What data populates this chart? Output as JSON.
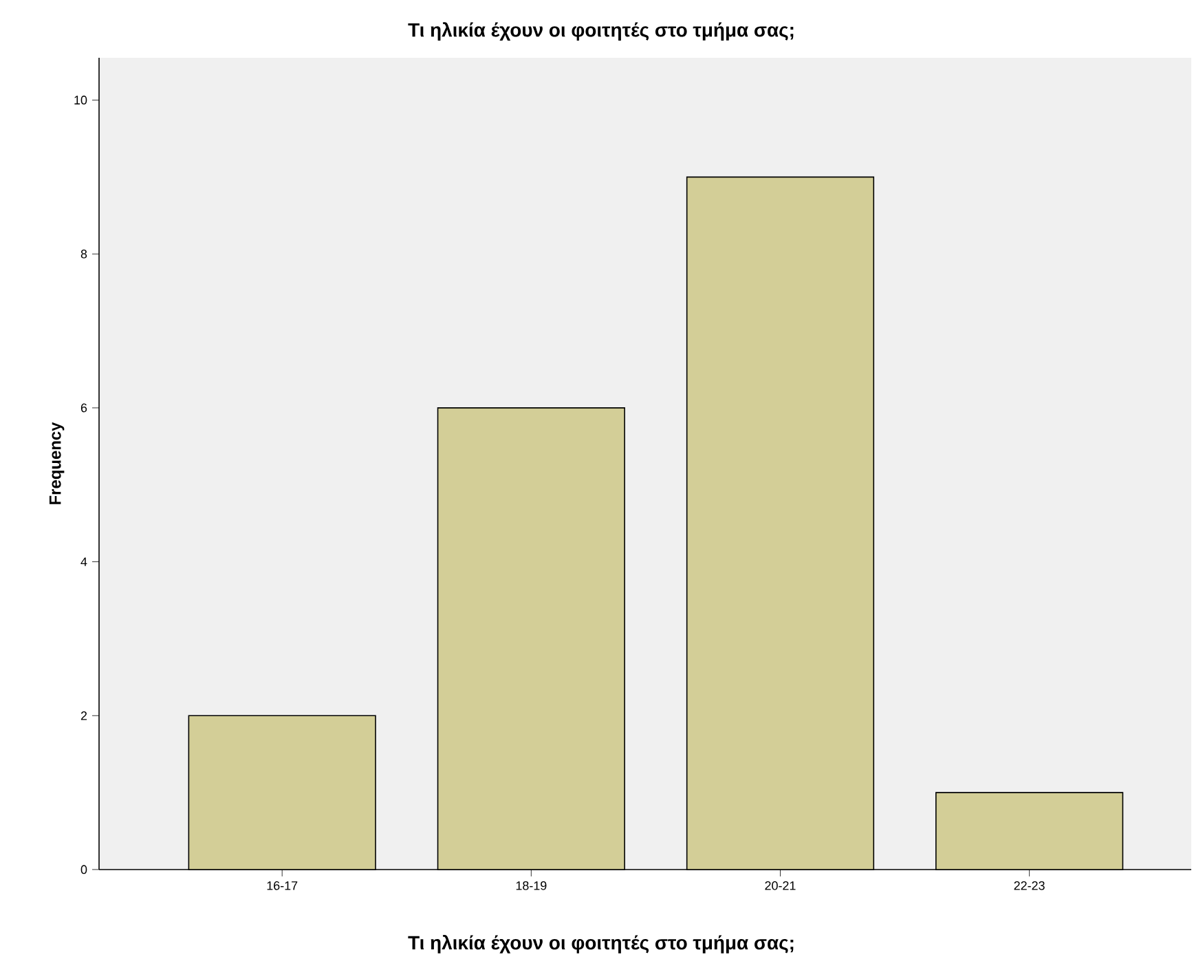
{
  "chart_data": {
    "type": "bar",
    "title": "Τι ηλικία έχουν οι φοιτητές στο τμήμα σας;",
    "xlabel": "Τι ηλικία έχουν οι φοιτητές στο τμήμα σας;",
    "ylabel": "Frequency",
    "categories": [
      "16-17",
      "18-19",
      "20-21",
      "22-23"
    ],
    "values": [
      2,
      6,
      9,
      1
    ],
    "color": "#d3ce97",
    "ylim": [
      0,
      10.55
    ],
    "yticks": [
      0,
      2,
      4,
      6,
      8,
      10
    ],
    "grid": false
  }
}
